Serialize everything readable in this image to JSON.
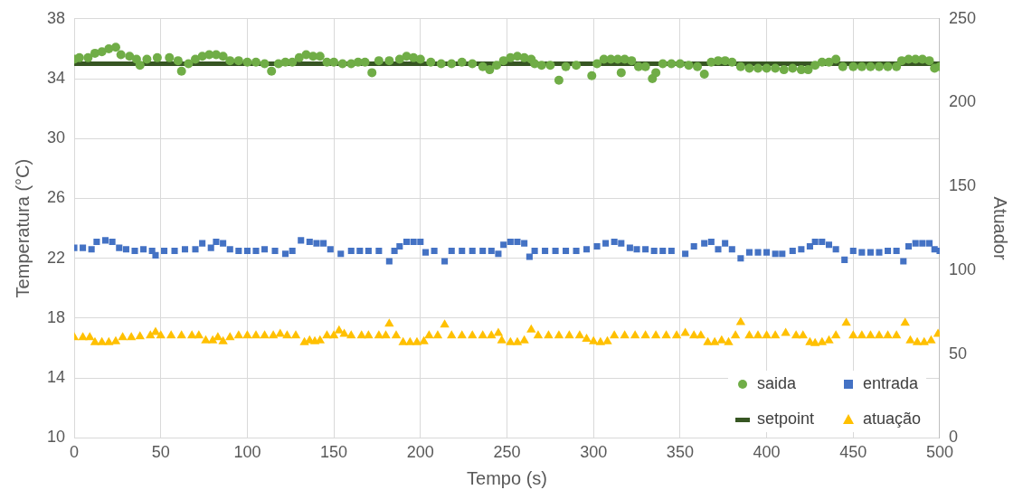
{
  "chart_data": {
    "type": "scatter",
    "xlabel": "Tempo (s)",
    "ylabel": "Temperatura (°C)",
    "y2label": "Atuador",
    "xlim": [
      0,
      500
    ],
    "xticks": [
      0,
      50,
      100,
      150,
      200,
      250,
      300,
      350,
      400,
      450,
      500
    ],
    "ylim": [
      10,
      38
    ],
    "yticks": [
      10,
      14,
      18,
      22,
      26,
      30,
      34,
      38
    ],
    "y2lim": [
      0,
      250
    ],
    "y2ticks": [
      0,
      50,
      100,
      150,
      200,
      250
    ],
    "grid": true,
    "legend": "bottom right",
    "series": [
      {
        "name": "saida",
        "type": "scatter",
        "marker": "circle",
        "color": "#70ad47",
        "x": [
          0,
          3,
          8,
          12,
          16,
          20,
          24,
          27,
          32,
          36,
          38,
          42,
          48,
          55,
          60,
          62,
          66,
          70,
          74,
          78,
          82,
          86,
          90,
          95,
          100,
          105,
          110,
          114,
          118,
          122,
          126,
          130,
          134,
          138,
          142,
          146,
          150,
          155,
          160,
          164,
          168,
          172,
          176,
          182,
          188,
          192,
          196,
          200,
          206,
          212,
          218,
          224,
          230,
          236,
          240,
          244,
          248,
          252,
          256,
          260,
          264,
          266,
          270,
          275,
          280,
          284,
          290,
          299,
          302,
          306,
          310,
          314,
          316,
          318,
          322,
          326,
          330,
          334,
          336,
          340,
          345,
          350,
          355,
          360,
          364,
          368,
          372,
          376,
          380,
          385,
          390,
          395,
          400,
          405,
          410,
          415,
          420,
          424,
          428,
          432,
          436,
          440,
          444,
          450,
          455,
          460,
          465,
          470,
          475,
          478,
          482,
          486,
          490,
          494,
          497,
          500
        ],
        "values": [
          35.3,
          35.4,
          35.4,
          35.7,
          35.8,
          36.0,
          36.1,
          35.6,
          35.5,
          35.3,
          34.9,
          35.3,
          35.4,
          35.4,
          35.2,
          34.5,
          35.0,
          35.3,
          35.5,
          35.6,
          35.6,
          35.5,
          35.2,
          35.2,
          35.1,
          35.1,
          35.0,
          34.5,
          35.0,
          35.1,
          35.1,
          35.4,
          35.6,
          35.5,
          35.5,
          35.1,
          35.1,
          35.0,
          35.0,
          35.1,
          35.1,
          34.4,
          35.2,
          35.2,
          35.3,
          35.5,
          35.4,
          35.3,
          35.1,
          35.0,
          35.0,
          35.1,
          35.0,
          34.8,
          34.6,
          34.9,
          35.2,
          35.4,
          35.5,
          35.4,
          35.3,
          35.0,
          34.9,
          34.9,
          33.9,
          34.8,
          34.9,
          34.2,
          35.0,
          35.3,
          35.3,
          35.3,
          34.4,
          35.3,
          35.2,
          34.8,
          34.8,
          34.0,
          34.4,
          35.0,
          35.0,
          35.0,
          34.9,
          34.8,
          34.3,
          35.1,
          35.2,
          35.2,
          35.1,
          34.8,
          34.7,
          34.7,
          34.7,
          34.7,
          34.6,
          34.7,
          34.6,
          34.6,
          34.9,
          35.1,
          35.1,
          35.3,
          34.8,
          34.8,
          34.8,
          34.8,
          34.8,
          34.8,
          34.8,
          35.2,
          35.3,
          35.3,
          35.3,
          35.2,
          34.7,
          34.8
        ]
      },
      {
        "name": "entrada",
        "type": "scatter",
        "marker": "square",
        "color": "#4472c4",
        "x": [
          0,
          5,
          10,
          13,
          18,
          22,
          26,
          30,
          35,
          40,
          45,
          47,
          52,
          58,
          64,
          70,
          74,
          79,
          82,
          86,
          90,
          95,
          100,
          105,
          110,
          116,
          122,
          126,
          131,
          136,
          140,
          144,
          148,
          154,
          160,
          165,
          170,
          176,
          182,
          185,
          188,
          192,
          196,
          200,
          203,
          208,
          214,
          218,
          224,
          230,
          236,
          241,
          245,
          248,
          252,
          256,
          260,
          263,
          266,
          272,
          278,
          284,
          290,
          296,
          302,
          307,
          312,
          316,
          321,
          325,
          330,
          335,
          340,
          345,
          353,
          358,
          364,
          368,
          372,
          376,
          380,
          385,
          390,
          395,
          400,
          405,
          409,
          415,
          420,
          425,
          428,
          432,
          436,
          440,
          445,
          450,
          455,
          460,
          465,
          470,
          475,
          479,
          482,
          486,
          490,
          494,
          497,
          500
        ],
        "values": [
          22.7,
          22.7,
          22.6,
          23.1,
          23.2,
          23.1,
          22.7,
          22.6,
          22.5,
          22.6,
          22.5,
          22.2,
          22.5,
          22.5,
          22.6,
          22.6,
          23.0,
          22.7,
          23.1,
          23.0,
          22.6,
          22.5,
          22.5,
          22.5,
          22.6,
          22.5,
          22.3,
          22.5,
          23.2,
          23.1,
          23.0,
          23.0,
          22.6,
          22.3,
          22.5,
          22.5,
          22.5,
          22.5,
          21.8,
          22.5,
          22.8,
          23.1,
          23.1,
          23.1,
          22.4,
          22.5,
          21.8,
          22.5,
          22.5,
          22.5,
          22.5,
          22.5,
          22.3,
          22.9,
          23.1,
          23.1,
          23.0,
          22.1,
          22.5,
          22.5,
          22.5,
          22.5,
          22.5,
          22.6,
          22.8,
          23.0,
          23.1,
          23.0,
          22.7,
          22.6,
          22.6,
          22.5,
          22.5,
          22.5,
          22.3,
          22.8,
          23.0,
          23.1,
          22.6,
          23.0,
          22.6,
          22.0,
          22.4,
          22.4,
          22.4,
          22.3,
          22.3,
          22.5,
          22.6,
          22.8,
          23.1,
          23.1,
          22.9,
          22.6,
          21.9,
          22.5,
          22.4,
          22.4,
          22.4,
          22.5,
          22.5,
          21.8,
          22.8,
          23.0,
          23.0,
          23.0,
          22.6,
          22.5
        ]
      },
      {
        "name": "setpoint",
        "type": "line",
        "marker": "none",
        "color": "#375623",
        "x": [
          0,
          500
        ],
        "values": [
          35,
          35
        ]
      },
      {
        "name": "atuação",
        "type": "scatter",
        "marker": "triangle",
        "color": "#ffc000",
        "axis": "y2",
        "x": [
          0,
          5,
          9,
          12,
          16,
          20,
          24,
          28,
          33,
          38,
          44,
          47,
          50,
          56,
          62,
          68,
          72,
          76,
          80,
          83,
          86,
          90,
          95,
          100,
          105,
          110,
          115,
          119,
          123,
          128,
          133,
          136,
          139,
          142,
          146,
          150,
          153,
          156,
          160,
          166,
          170,
          176,
          180,
          182,
          186,
          190,
          194,
          198,
          202,
          205,
          210,
          214,
          218,
          224,
          230,
          236,
          241,
          245,
          247,
          252,
          256,
          260,
          264,
          268,
          274,
          280,
          286,
          292,
          296,
          300,
          304,
          308,
          312,
          318,
          324,
          330,
          336,
          342,
          348,
          353,
          358,
          362,
          366,
          370,
          374,
          378,
          382,
          385,
          390,
          395,
          400,
          405,
          411,
          417,
          421,
          425,
          428,
          432,
          436,
          440,
          446,
          450,
          455,
          460,
          465,
          470,
          475,
          480,
          483,
          487,
          491,
          495,
          499
        ],
        "values": [
          60,
          60,
          60,
          57,
          57,
          57,
          57.5,
          60,
          60,
          60.5,
          61,
          63,
          61,
          61,
          61,
          61,
          61,
          58,
          58,
          60,
          57.5,
          60,
          61,
          61,
          61,
          61,
          61,
          62,
          61,
          61,
          57,
          58,
          57.5,
          58,
          61,
          61,
          64,
          62,
          61,
          61,
          61,
          61,
          61,
          68,
          61,
          57,
          57,
          57,
          57.5,
          61,
          61,
          67.5,
          61,
          61,
          61,
          61,
          61,
          62.5,
          58,
          57,
          57,
          58,
          64.5,
          61,
          61,
          61,
          61,
          61,
          59,
          57.5,
          57,
          57.5,
          61,
          61,
          61,
          61,
          61,
          61,
          61,
          62.5,
          61,
          61,
          57,
          57,
          58,
          57,
          61,
          69,
          61,
          61,
          61,
          61,
          62.5,
          61,
          61,
          57,
          56.5,
          57,
          58,
          61,
          68.5,
          61,
          61,
          61,
          61,
          61,
          61,
          68.5,
          58,
          57,
          57,
          58,
          62
        ]
      }
    ]
  }
}
